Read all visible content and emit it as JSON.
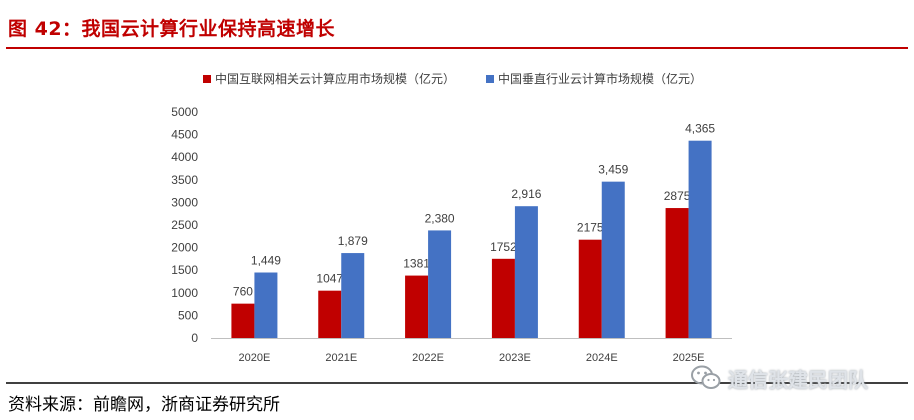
{
  "figure": {
    "title": "图 42：我国云计算行业保持高速增长",
    "source": "资料来源：前瞻网，浙商证券研究所",
    "watermark": "通信张建民团队",
    "watermark_icon": "wechat-icon"
  },
  "chart_data": {
    "type": "bar",
    "categories": [
      "2020E",
      "2021E",
      "2022E",
      "2023E",
      "2024E",
      "2025E"
    ],
    "series": [
      {
        "name": "中国互联网相关云计算应用市场规模（亿元）",
        "color": "#c00000",
        "values": [
          760,
          1047,
          1381,
          1752,
          2175,
          2875
        ],
        "labels": [
          "760",
          "1047",
          "1381",
          "1752",
          "2175",
          "2875"
        ]
      },
      {
        "name": "中国垂直行业云计算市场规模（亿元）",
        "color": "#4472c4",
        "values": [
          1449,
          1879,
          2380,
          2916,
          3459,
          4365
        ],
        "labels": [
          "1,449",
          "1,879",
          "2,380",
          "2,916",
          "3,459",
          "4,365"
        ]
      }
    ],
    "yticks": [
      0,
      500,
      1000,
      1500,
      2000,
      2500,
      3000,
      3500,
      4000,
      4500,
      5000
    ],
    "ylim": [
      0,
      5000
    ],
    "legend_position": "top",
    "grid": false
  }
}
